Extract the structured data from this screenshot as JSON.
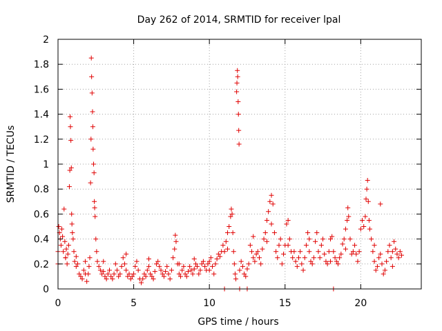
{
  "chart_data": {
    "type": "scatter",
    "title": "Day 262 of 2014, SRMTID for receiver lpal",
    "xlabel": "GPS time / hours",
    "ylabel": "SRMTID / TECUs",
    "xlim": [
      0,
      24
    ],
    "ylim": [
      0,
      2
    ],
    "x_ticks": [
      0,
      5,
      10,
      15,
      20
    ],
    "x_tick_labels": [
      "0",
      "5",
      "10",
      "15",
      "20"
    ],
    "y_ticks": [
      0,
      0.2,
      0.4,
      0.6,
      0.8,
      1,
      1.2,
      1.4,
      1.6,
      1.8,
      2
    ],
    "y_tick_labels": [
      "0",
      "0.2",
      "0.4",
      "0.6",
      "0.8",
      "1",
      "1.2",
      "1.4",
      "1.6",
      "1.8",
      "2"
    ],
    "grid": true,
    "marker": "+",
    "series": [
      {
        "name": "SRMTID",
        "color": "#e00000",
        "points": [
          [
            0.0,
            0.3
          ],
          [
            0.05,
            0.5
          ],
          [
            0.1,
            0.45
          ],
          [
            0.15,
            0.4
          ],
          [
            0.2,
            0.35
          ],
          [
            0.25,
            0.48
          ],
          [
            0.3,
            0.42
          ],
          [
            0.35,
            0.3
          ],
          [
            0.4,
            0.64
          ],
          [
            0.45,
            0.38
          ],
          [
            0.5,
            0.25
          ],
          [
            0.55,
            0.32
          ],
          [
            0.6,
            0.2
          ],
          [
            0.65,
            0.28
          ],
          [
            0.7,
            0.35
          ],
          [
            0.75,
            0.82
          ],
          [
            0.78,
            0.95
          ],
          [
            0.8,
            1.38
          ],
          [
            0.82,
            1.3
          ],
          [
            0.85,
            1.19
          ],
          [
            0.88,
            0.97
          ],
          [
            0.9,
            0.6
          ],
          [
            0.92,
            0.52
          ],
          [
            0.95,
            0.45
          ],
          [
            1.0,
            0.4
          ],
          [
            1.05,
            0.3
          ],
          [
            1.1,
            0.22
          ],
          [
            1.2,
            0.18
          ],
          [
            1.3,
            0.2
          ],
          [
            1.4,
            0.12
          ],
          [
            1.5,
            0.1
          ],
          [
            1.6,
            0.08
          ],
          [
            1.7,
            0.15
          ],
          [
            1.8,
            0.12
          ],
          [
            1.9,
            0.06
          ],
          [
            2.0,
            0.12
          ],
          [
            2.05,
            0.18
          ],
          [
            2.1,
            0.25
          ],
          [
            2.15,
            0.85
          ],
          [
            2.18,
            1.2
          ],
          [
            2.2,
            1.85
          ],
          [
            2.22,
            1.7
          ],
          [
            2.25,
            1.57
          ],
          [
            2.28,
            1.42
          ],
          [
            2.3,
            1.3
          ],
          [
            2.32,
            1.12
          ],
          [
            2.35,
            1.0
          ],
          [
            2.38,
            0.93
          ],
          [
            2.4,
            0.7
          ],
          [
            2.42,
            0.65
          ],
          [
            2.45,
            0.58
          ],
          [
            2.5,
            0.4
          ],
          [
            2.55,
            0.3
          ],
          [
            2.6,
            0.22
          ],
          [
            2.7,
            0.18
          ],
          [
            2.8,
            0.15
          ],
          [
            2.9,
            0.12
          ],
          [
            3.0,
            0.14
          ],
          [
            3.1,
            0.1
          ],
          [
            3.2,
            0.08
          ],
          [
            3.3,
            0.12
          ],
          [
            3.4,
            0.15
          ],
          [
            3.5,
            0.1
          ],
          [
            3.6,
            0.08
          ],
          [
            3.7,
            0.12
          ],
          [
            3.8,
            0.2
          ],
          [
            3.9,
            0.15
          ],
          [
            4.0,
            0.1
          ],
          [
            4.1,
            0.12
          ],
          [
            4.2,
            0.18
          ],
          [
            4.3,
            0.25
          ],
          [
            4.4,
            0.2
          ],
          [
            4.5,
            0.15
          ],
          [
            4.6,
            0.1
          ],
          [
            4.7,
            0.12
          ],
          [
            4.8,
            0.08
          ],
          [
            4.9,
            0.1
          ],
          [
            5.0,
            0.12
          ],
          [
            5.1,
            0.18
          ],
          [
            5.2,
            0.22
          ],
          [
            5.3,
            0.15
          ],
          [
            5.4,
            0.08
          ],
          [
            5.5,
            0.05
          ],
          [
            5.6,
            0.08
          ],
          [
            5.7,
            0.12
          ],
          [
            5.8,
            0.1
          ],
          [
            5.9,
            0.15
          ],
          [
            6.0,
            0.18
          ],
          [
            6.1,
            0.12
          ],
          [
            6.2,
            0.1
          ],
          [
            6.3,
            0.08
          ],
          [
            6.4,
            0.14
          ],
          [
            6.5,
            0.2
          ],
          [
            6.6,
            0.22
          ],
          [
            6.7,
            0.18
          ],
          [
            6.8,
            0.15
          ],
          [
            6.9,
            0.12
          ],
          [
            7.0,
            0.1
          ],
          [
            7.1,
            0.14
          ],
          [
            7.2,
            0.18
          ],
          [
            7.3,
            0.12
          ],
          [
            7.4,
            0.08
          ],
          [
            7.5,
            0.15
          ],
          [
            7.6,
            0.25
          ],
          [
            7.7,
            0.32
          ],
          [
            7.75,
            0.43
          ],
          [
            7.8,
            0.38
          ],
          [
            7.9,
            0.2
          ],
          [
            8.0,
            0.12
          ],
          [
            8.1,
            0.1
          ],
          [
            8.2,
            0.15
          ],
          [
            8.3,
            0.18
          ],
          [
            8.4,
            0.12
          ],
          [
            8.5,
            0.1
          ],
          [
            8.6,
            0.14
          ],
          [
            8.7,
            0.18
          ],
          [
            8.8,
            0.15
          ],
          [
            8.9,
            0.12
          ],
          [
            9.0,
            0.16
          ],
          [
            9.1,
            0.2
          ],
          [
            9.2,
            0.18
          ],
          [
            9.3,
            0.12
          ],
          [
            9.4,
            0.15
          ],
          [
            9.5,
            0.2
          ],
          [
            9.6,
            0.22
          ],
          [
            9.7,
            0.18
          ],
          [
            9.8,
            0.15
          ],
          [
            9.9,
            0.2
          ],
          [
            10.0,
            0.22
          ],
          [
            10.1,
            0.25
          ],
          [
            10.2,
            0.18
          ],
          [
            10.3,
            0.12
          ],
          [
            10.4,
            0.2
          ],
          [
            10.5,
            0.24
          ],
          [
            10.6,
            0.28
          ],
          [
            10.7,
            0.26
          ],
          [
            10.8,
            0.3
          ],
          [
            10.9,
            0.35
          ],
          [
            11.0,
            0.3
          ],
          [
            11.1,
            0.38
          ],
          [
            11.2,
            0.45
          ],
          [
            11.3,
            0.5
          ],
          [
            11.4,
            0.58
          ],
          [
            11.45,
            0.64
          ],
          [
            11.5,
            0.6
          ],
          [
            11.55,
            0.45
          ],
          [
            11.6,
            0.3
          ],
          [
            11.65,
            0.2
          ],
          [
            11.7,
            0.12
          ],
          [
            11.75,
            0.08
          ],
          [
            11.8,
            1.58
          ],
          [
            11.82,
            1.65
          ],
          [
            11.85,
            1.75
          ],
          [
            11.87,
            1.7
          ],
          [
            11.9,
            1.5
          ],
          [
            11.92,
            1.4
          ],
          [
            11.94,
            1.27
          ],
          [
            11.96,
            1.16
          ],
          [
            12.0,
            0.15
          ],
          [
            12.1,
            0.22
          ],
          [
            12.2,
            0.18
          ],
          [
            12.3,
            0.12
          ],
          [
            12.4,
            0.1
          ],
          [
            12.5,
            0.16
          ],
          [
            12.6,
            0.2
          ],
          [
            12.7,
            0.35
          ],
          [
            12.8,
            0.3
          ],
          [
            12.9,
            0.25
          ],
          [
            13.0,
            0.22
          ],
          [
            13.1,
            0.28
          ],
          [
            13.2,
            0.3
          ],
          [
            13.3,
            0.25
          ],
          [
            13.4,
            0.2
          ],
          [
            13.5,
            0.32
          ],
          [
            13.6,
            0.4
          ],
          [
            13.7,
            0.45
          ],
          [
            13.8,
            0.55
          ],
          [
            13.9,
            0.62
          ],
          [
            14.0,
            0.7
          ],
          [
            14.1,
            0.75
          ],
          [
            14.2,
            0.68
          ],
          [
            14.3,
            0.45
          ],
          [
            14.4,
            0.3
          ],
          [
            14.5,
            0.25
          ],
          [
            14.6,
            0.35
          ],
          [
            14.7,
            0.4
          ],
          [
            14.8,
            0.2
          ],
          [
            14.9,
            0.28
          ],
          [
            15.0,
            0.35
          ],
          [
            15.1,
            0.52
          ],
          [
            15.2,
            0.55
          ],
          [
            15.3,
            0.4
          ],
          [
            15.4,
            0.3
          ],
          [
            15.5,
            0.25
          ],
          [
            15.6,
            0.3
          ],
          [
            15.7,
            0.22
          ],
          [
            15.8,
            0.18
          ],
          [
            15.9,
            0.25
          ],
          [
            16.0,
            0.3
          ],
          [
            16.1,
            0.2
          ],
          [
            16.2,
            0.15
          ],
          [
            16.3,
            0.25
          ],
          [
            16.4,
            0.35
          ],
          [
            16.5,
            0.45
          ],
          [
            16.6,
            0.3
          ],
          [
            16.7,
            0.22
          ],
          [
            16.8,
            0.2
          ],
          [
            16.9,
            0.25
          ],
          [
            17.0,
            0.38
          ],
          [
            17.1,
            0.45
          ],
          [
            17.2,
            0.3
          ],
          [
            17.3,
            0.25
          ],
          [
            17.4,
            0.35
          ],
          [
            17.5,
            0.4
          ],
          [
            17.6,
            0.28
          ],
          [
            17.7,
            0.22
          ],
          [
            17.8,
            0.2
          ],
          [
            17.9,
            0.3
          ],
          [
            18.0,
            0.4
          ],
          [
            18.1,
            0.42
          ],
          [
            18.2,
            0.3
          ],
          [
            18.3,
            0.25
          ],
          [
            18.4,
            0.22
          ],
          [
            18.5,
            0.2
          ],
          [
            18.6,
            0.25
          ],
          [
            18.7,
            0.28
          ],
          [
            18.8,
            0.36
          ],
          [
            18.9,
            0.4
          ],
          [
            19.0,
            0.48
          ],
          [
            19.1,
            0.55
          ],
          [
            19.15,
            0.65
          ],
          [
            19.2,
            0.58
          ],
          [
            19.3,
            0.4
          ],
          [
            19.4,
            0.28
          ],
          [
            19.5,
            0.3
          ],
          [
            19.6,
            0.35
          ],
          [
            19.7,
            0.28
          ],
          [
            19.8,
            0.22
          ],
          [
            19.9,
            0.3
          ],
          [
            20.0,
            0.48
          ],
          [
            20.1,
            0.55
          ],
          [
            20.2,
            0.5
          ],
          [
            20.3,
            0.58
          ],
          [
            20.35,
            0.72
          ],
          [
            20.4,
            0.8
          ],
          [
            20.45,
            0.87
          ],
          [
            20.5,
            0.7
          ],
          [
            20.55,
            0.55
          ],
          [
            20.6,
            0.48
          ],
          [
            20.7,
            0.4
          ],
          [
            20.8,
            0.3
          ],
          [
            20.9,
            0.22
          ],
          [
            21.0,
            0.15
          ],
          [
            21.1,
            0.18
          ],
          [
            21.2,
            0.25
          ],
          [
            21.3,
            0.28
          ],
          [
            21.4,
            0.2
          ],
          [
            21.5,
            0.12
          ],
          [
            21.6,
            0.15
          ],
          [
            21.7,
            0.22
          ],
          [
            21.8,
            0.3
          ],
          [
            21.9,
            0.35
          ],
          [
            22.0,
            0.25
          ],
          [
            22.1,
            0.3
          ],
          [
            22.2,
            0.38
          ],
          [
            22.3,
            0.32
          ],
          [
            22.4,
            0.28
          ],
          [
            22.5,
            0.25
          ],
          [
            22.6,
            0.3
          ],
          [
            22.7,
            0.27
          ],
          [
            0.0,
            0.2
          ],
          [
            0.5,
            0.25
          ],
          [
            1.2,
            0.26
          ],
          [
            1.8,
            0.22
          ],
          [
            3.0,
            0.22
          ],
          [
            4.5,
            0.28
          ],
          [
            6.0,
            0.24
          ],
          [
            8.0,
            0.2
          ],
          [
            9.0,
            0.24
          ],
          [
            10.0,
            0.15
          ],
          [
            11.2,
            0.32
          ],
          [
            12.9,
            0.42
          ],
          [
            13.8,
            0.38
          ],
          [
            14.1,
            0.52
          ],
          [
            15.2,
            0.35
          ],
          [
            16.6,
            0.4
          ],
          [
            18.0,
            0.22
          ],
          [
            19.0,
            0.32
          ],
          [
            20.9,
            0.35
          ],
          [
            21.3,
            0.68
          ],
          [
            22.1,
            0.18
          ],
          [
            11.0,
            0.0
          ],
          [
            12.0,
            0.0
          ],
          [
            12.5,
            0.0
          ],
          [
            18.2,
            0.0
          ]
        ]
      }
    ]
  }
}
